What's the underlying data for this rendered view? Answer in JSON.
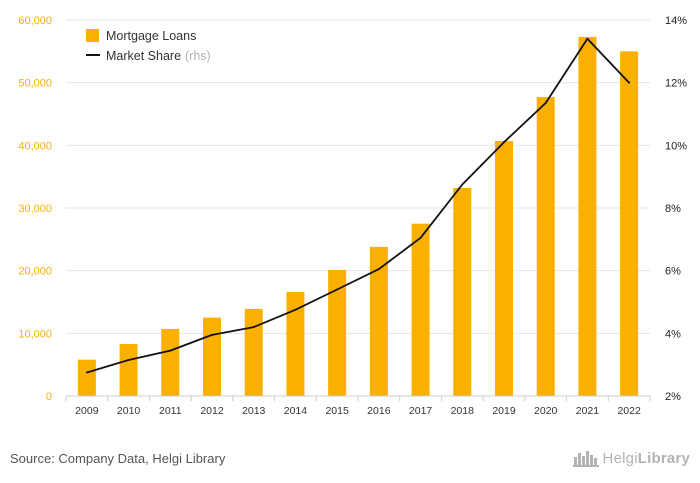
{
  "chart_data": {
    "type": "bar",
    "categories": [
      "2009",
      "2010",
      "2011",
      "2012",
      "2013",
      "2014",
      "2015",
      "2016",
      "2017",
      "2018",
      "2019",
      "2020",
      "2021",
      "2022"
    ],
    "series": [
      {
        "name": "Mortgage Loans",
        "axis": "left",
        "chart_type": "bar",
        "color": "#f9b000",
        "values": [
          5800,
          8300,
          10700,
          12500,
          13900,
          16600,
          20100,
          23800,
          27500,
          33200,
          40700,
          47700,
          57300,
          55000
        ]
      },
      {
        "name": "Market Share",
        "axis": "right",
        "chart_type": "line",
        "color": "#111111",
        "values": [
          2.75,
          3.15,
          3.45,
          3.95,
          4.2,
          4.75,
          5.4,
          6.05,
          7.05,
          8.75,
          10.1,
          11.35,
          13.4,
          12.0
        ]
      }
    ],
    "legend": {
      "position": "top-left",
      "items": [
        {
          "label": "Mortgage Loans",
          "suffix": ""
        },
        {
          "label": "Market Share",
          "suffix": "(rhs)"
        }
      ]
    },
    "y_left": {
      "ylim": [
        0,
        60000
      ],
      "ticks": [
        0,
        10000,
        20000,
        30000,
        40000,
        50000,
        60000
      ],
      "tick_labels": [
        "0",
        "10,000",
        "20,000",
        "30,000",
        "40,000",
        "50,000",
        "60,000"
      ],
      "tick_color": "#f9b000"
    },
    "y_right": {
      "ylim": [
        2,
        14
      ],
      "ticks": [
        2,
        4,
        6,
        8,
        10,
        12,
        14
      ],
      "tick_labels": [
        "2%",
        "4%",
        "6%",
        "8%",
        "10%",
        "12%",
        "14%"
      ]
    },
    "grid": true
  },
  "footer": {
    "source": "Source: Company Data, Helgi Library",
    "logo_text_light": "Helgi",
    "logo_text_bold": "Library"
  }
}
